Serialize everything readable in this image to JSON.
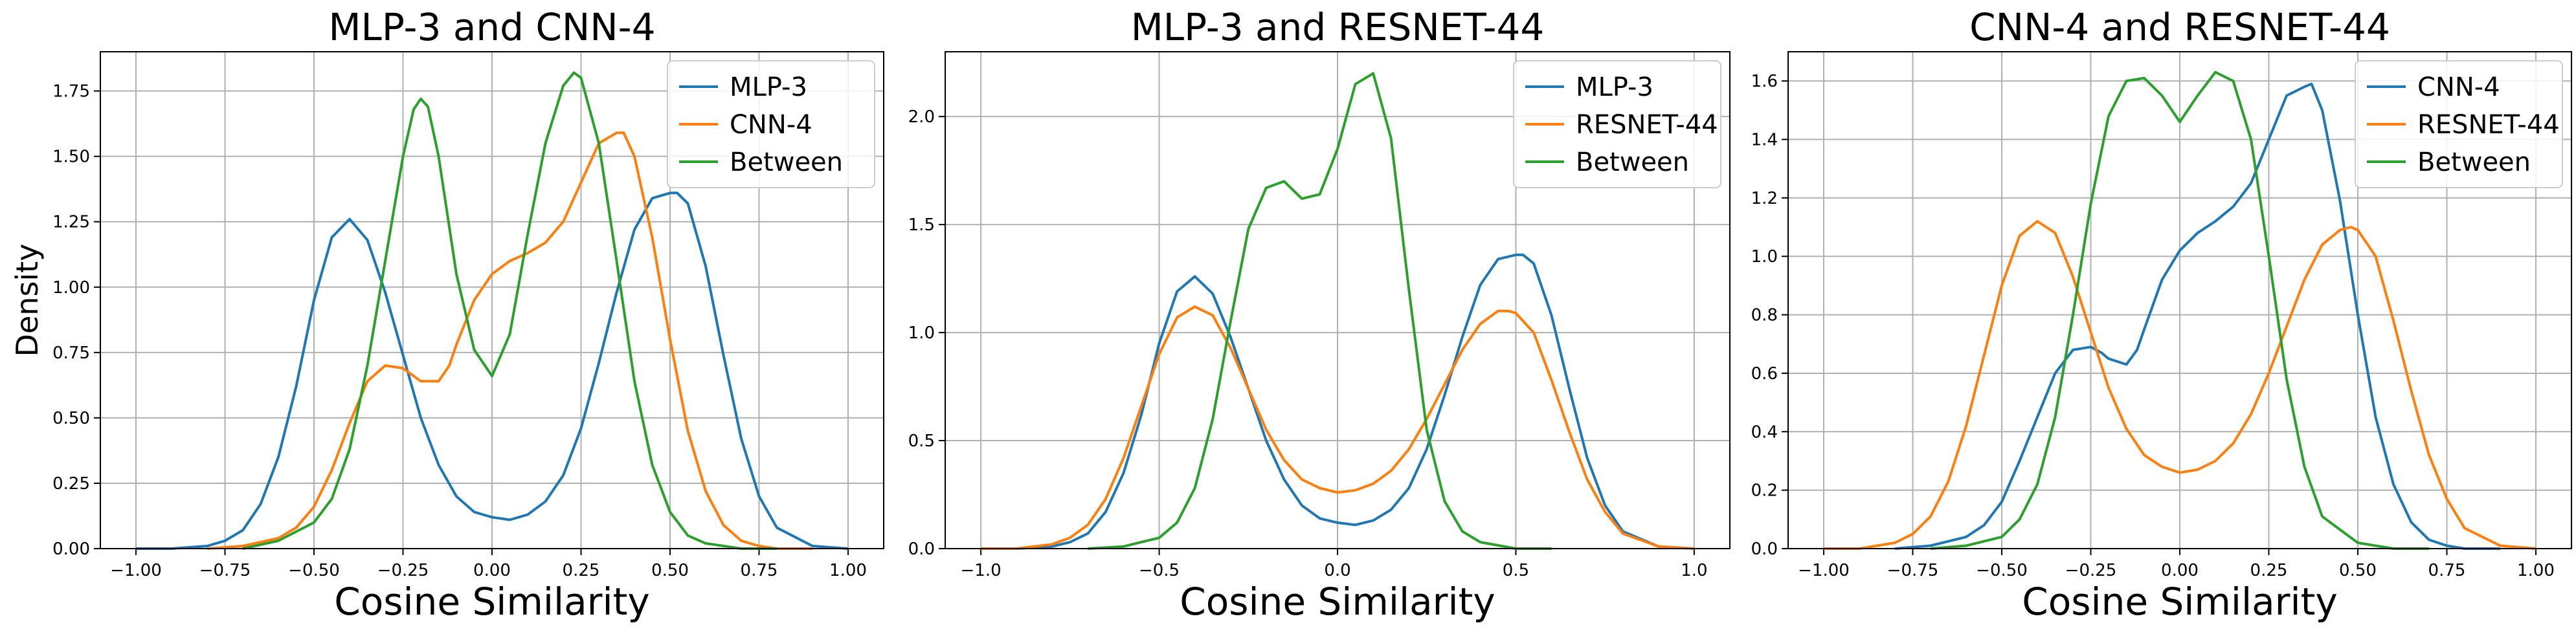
{
  "chart_data": [
    {
      "type": "line",
      "title": "MLP-3 and CNN-4",
      "xlabel": "Cosine Similarity",
      "ylabel": "Density",
      "xlim": [
        -1.1,
        1.1
      ],
      "ylim": [
        0,
        1.9
      ],
      "xticks": [
        -1.0,
        -0.75,
        -0.5,
        -0.25,
        0.0,
        0.25,
        0.5,
        0.75,
        1.0
      ],
      "xtick_labels": [
        "−1.00",
        "−0.75",
        "−0.50",
        "−0.25",
        "0.00",
        "0.25",
        "0.50",
        "0.75",
        "1.00"
      ],
      "yticks": [
        0,
        0.25,
        0.5,
        0.75,
        1.0,
        1.25,
        1.5,
        1.75
      ],
      "ytick_labels": [
        "0.00",
        "0.25",
        "0.50",
        "0.75",
        "1.00",
        "1.25",
        "1.50",
        "1.75"
      ],
      "grid": true,
      "legend": "upper right",
      "series": [
        {
          "name": "MLP-3",
          "color": "#1f77b4",
          "x": [
            -1.0,
            -0.9,
            -0.8,
            -0.75,
            -0.7,
            -0.65,
            -0.6,
            -0.55,
            -0.5,
            -0.45,
            -0.4,
            -0.35,
            -0.3,
            -0.25,
            -0.2,
            -0.15,
            -0.1,
            -0.05,
            0.0,
            0.05,
            0.1,
            0.15,
            0.2,
            0.25,
            0.3,
            0.35,
            0.4,
            0.45,
            0.5,
            0.52,
            0.55,
            0.6,
            0.65,
            0.7,
            0.75,
            0.8,
            0.9,
            1.0
          ],
          "y": [
            0.0,
            0.0,
            0.01,
            0.03,
            0.07,
            0.17,
            0.35,
            0.62,
            0.95,
            1.19,
            1.26,
            1.18,
            0.98,
            0.74,
            0.5,
            0.32,
            0.2,
            0.14,
            0.12,
            0.11,
            0.13,
            0.18,
            0.28,
            0.46,
            0.71,
            0.98,
            1.22,
            1.34,
            1.36,
            1.36,
            1.32,
            1.08,
            0.74,
            0.42,
            0.2,
            0.08,
            0.01,
            0.0
          ]
        },
        {
          "name": "CNN-4",
          "color": "#ff7f0e",
          "x": [
            -0.8,
            -0.7,
            -0.6,
            -0.55,
            -0.5,
            -0.45,
            -0.4,
            -0.35,
            -0.3,
            -0.25,
            -0.22,
            -0.2,
            -0.15,
            -0.12,
            -0.1,
            -0.05,
            0.0,
            0.05,
            0.1,
            0.15,
            0.2,
            0.25,
            0.3,
            0.35,
            0.37,
            0.4,
            0.45,
            0.5,
            0.55,
            0.6,
            0.65,
            0.7,
            0.75,
            0.8,
            0.9
          ],
          "y": [
            0.0,
            0.01,
            0.04,
            0.08,
            0.16,
            0.3,
            0.48,
            0.64,
            0.7,
            0.69,
            0.66,
            0.64,
            0.64,
            0.7,
            0.78,
            0.95,
            1.05,
            1.1,
            1.13,
            1.17,
            1.25,
            1.4,
            1.55,
            1.59,
            1.59,
            1.5,
            1.19,
            0.8,
            0.45,
            0.22,
            0.09,
            0.03,
            0.01,
            0.0,
            0.0
          ]
        },
        {
          "name": "Between",
          "color": "#2ca02c",
          "x": [
            -0.7,
            -0.6,
            -0.5,
            -0.45,
            -0.4,
            -0.35,
            -0.3,
            -0.25,
            -0.22,
            -0.2,
            -0.18,
            -0.15,
            -0.1,
            -0.05,
            0.0,
            0.05,
            0.1,
            0.15,
            0.2,
            0.23,
            0.25,
            0.3,
            0.35,
            0.4,
            0.45,
            0.5,
            0.55,
            0.6,
            0.7,
            0.8
          ],
          "y": [
            0.0,
            0.03,
            0.1,
            0.19,
            0.38,
            0.7,
            1.1,
            1.5,
            1.68,
            1.72,
            1.69,
            1.5,
            1.05,
            0.76,
            0.66,
            0.82,
            1.2,
            1.55,
            1.77,
            1.82,
            1.8,
            1.55,
            1.1,
            0.64,
            0.32,
            0.14,
            0.05,
            0.02,
            0.0,
            0.0
          ]
        }
      ]
    },
    {
      "type": "line",
      "title": "MLP-3 and RESNET-44",
      "xlabel": "Cosine Similarity",
      "ylabel": "",
      "xlim": [
        -1.1,
        1.1
      ],
      "ylim": [
        0,
        2.3
      ],
      "xticks": [
        -1.0,
        -0.5,
        0.0,
        0.5,
        1.0
      ],
      "xtick_labels": [
        "−1.0",
        "−0.5",
        "0.0",
        "0.5",
        "1.0"
      ],
      "yticks": [
        0,
        0.5,
        1.0,
        1.5,
        2.0
      ],
      "ytick_labels": [
        "0.0",
        "0.5",
        "1.0",
        "1.5",
        "2.0"
      ],
      "grid": true,
      "legend": "upper right",
      "series": [
        {
          "name": "MLP-3",
          "color": "#1f77b4",
          "x": [
            -1.0,
            -0.9,
            -0.8,
            -0.75,
            -0.7,
            -0.65,
            -0.6,
            -0.55,
            -0.5,
            -0.45,
            -0.4,
            -0.35,
            -0.3,
            -0.25,
            -0.2,
            -0.15,
            -0.1,
            -0.05,
            0.0,
            0.05,
            0.1,
            0.15,
            0.2,
            0.25,
            0.3,
            0.35,
            0.4,
            0.45,
            0.5,
            0.52,
            0.55,
            0.6,
            0.65,
            0.7,
            0.75,
            0.8,
            0.9,
            1.0
          ],
          "y": [
            0.0,
            0.0,
            0.01,
            0.03,
            0.07,
            0.17,
            0.35,
            0.62,
            0.95,
            1.19,
            1.26,
            1.18,
            0.98,
            0.74,
            0.5,
            0.32,
            0.2,
            0.14,
            0.12,
            0.11,
            0.13,
            0.18,
            0.28,
            0.46,
            0.71,
            0.98,
            1.22,
            1.34,
            1.36,
            1.36,
            1.32,
            1.08,
            0.74,
            0.42,
            0.2,
            0.08,
            0.01,
            0.0
          ]
        },
        {
          "name": "RESNET-44",
          "color": "#ff7f0e",
          "x": [
            -1.0,
            -0.9,
            -0.8,
            -0.75,
            -0.7,
            -0.65,
            -0.6,
            -0.55,
            -0.5,
            -0.45,
            -0.4,
            -0.35,
            -0.3,
            -0.25,
            -0.2,
            -0.15,
            -0.1,
            -0.05,
            0.0,
            0.05,
            0.1,
            0.15,
            0.2,
            0.25,
            0.3,
            0.35,
            0.4,
            0.45,
            0.48,
            0.5,
            0.55,
            0.6,
            0.65,
            0.7,
            0.75,
            0.8,
            0.9,
            1.0
          ],
          "y": [
            0.0,
            0.0,
            0.02,
            0.05,
            0.11,
            0.23,
            0.42,
            0.66,
            0.9,
            1.07,
            1.12,
            1.08,
            0.93,
            0.74,
            0.55,
            0.41,
            0.32,
            0.28,
            0.26,
            0.27,
            0.3,
            0.36,
            0.46,
            0.6,
            0.76,
            0.92,
            1.04,
            1.1,
            1.1,
            1.09,
            1.0,
            0.78,
            0.54,
            0.32,
            0.17,
            0.07,
            0.01,
            0.0
          ]
        },
        {
          "name": "Between",
          "color": "#2ca02c",
          "x": [
            -0.7,
            -0.6,
            -0.5,
            -0.45,
            -0.4,
            -0.35,
            -0.3,
            -0.25,
            -0.2,
            -0.15,
            -0.1,
            -0.05,
            0.0,
            0.05,
            0.1,
            0.15,
            0.2,
            0.25,
            0.3,
            0.35,
            0.4,
            0.5,
            0.6
          ],
          "y": [
            0.0,
            0.01,
            0.05,
            0.12,
            0.28,
            0.6,
            1.05,
            1.48,
            1.67,
            1.7,
            1.62,
            1.64,
            1.85,
            2.15,
            2.2,
            1.9,
            1.2,
            0.55,
            0.22,
            0.08,
            0.03,
            0.0,
            0.0
          ]
        }
      ]
    },
    {
      "type": "line",
      "title": "CNN-4 and RESNET-44",
      "xlabel": "Cosine Similarity",
      "ylabel": "",
      "xlim": [
        -1.1,
        1.1
      ],
      "ylim": [
        0,
        1.7
      ],
      "xticks": [
        -1.0,
        -0.75,
        -0.5,
        -0.25,
        0.0,
        0.25,
        0.5,
        0.75,
        1.0
      ],
      "xtick_labels": [
        "−1.00",
        "−0.75",
        "−0.50",
        "−0.25",
        "0.00",
        "0.25",
        "0.50",
        "0.75",
        "1.00"
      ],
      "yticks": [
        0,
        0.2,
        0.4,
        0.6,
        0.8,
        1.0,
        1.2,
        1.4,
        1.6
      ],
      "ytick_labels": [
        "0.0",
        "0.2",
        "0.4",
        "0.6",
        "0.8",
        "1.0",
        "1.2",
        "1.4",
        "1.6"
      ],
      "grid": true,
      "legend": "upper right",
      "series": [
        {
          "name": "CNN-4",
          "color": "#1f77b4",
          "x": [
            -0.8,
            -0.7,
            -0.6,
            -0.55,
            -0.5,
            -0.45,
            -0.4,
            -0.35,
            -0.3,
            -0.25,
            -0.22,
            -0.2,
            -0.15,
            -0.12,
            -0.1,
            -0.05,
            0.0,
            0.05,
            0.1,
            0.15,
            0.2,
            0.25,
            0.3,
            0.35,
            0.37,
            0.4,
            0.45,
            0.5,
            0.55,
            0.6,
            0.65,
            0.7,
            0.75,
            0.8,
            0.9
          ],
          "y": [
            0.0,
            0.01,
            0.04,
            0.08,
            0.16,
            0.3,
            0.45,
            0.6,
            0.68,
            0.69,
            0.67,
            0.65,
            0.63,
            0.68,
            0.75,
            0.92,
            1.02,
            1.08,
            1.12,
            1.17,
            1.25,
            1.4,
            1.55,
            1.58,
            1.59,
            1.5,
            1.19,
            0.8,
            0.45,
            0.22,
            0.09,
            0.03,
            0.01,
            0.0,
            0.0
          ]
        },
        {
          "name": "RESNET-44",
          "color": "#ff7f0e",
          "x": [
            -1.0,
            -0.9,
            -0.8,
            -0.75,
            -0.7,
            -0.65,
            -0.6,
            -0.55,
            -0.5,
            -0.45,
            -0.4,
            -0.35,
            -0.3,
            -0.25,
            -0.2,
            -0.15,
            -0.1,
            -0.05,
            0.0,
            0.05,
            0.1,
            0.15,
            0.2,
            0.25,
            0.3,
            0.35,
            0.4,
            0.45,
            0.48,
            0.5,
            0.55,
            0.6,
            0.65,
            0.7,
            0.75,
            0.8,
            0.9,
            1.0
          ],
          "y": [
            0.0,
            0.0,
            0.02,
            0.05,
            0.11,
            0.23,
            0.42,
            0.66,
            0.9,
            1.07,
            1.12,
            1.08,
            0.93,
            0.74,
            0.55,
            0.41,
            0.32,
            0.28,
            0.26,
            0.27,
            0.3,
            0.36,
            0.46,
            0.6,
            0.76,
            0.92,
            1.04,
            1.09,
            1.1,
            1.09,
            1.0,
            0.78,
            0.54,
            0.32,
            0.17,
            0.07,
            0.01,
            0.0
          ]
        },
        {
          "name": "Between",
          "color": "#2ca02c",
          "x": [
            -0.7,
            -0.6,
            -0.5,
            -0.45,
            -0.4,
            -0.35,
            -0.3,
            -0.25,
            -0.2,
            -0.15,
            -0.1,
            -0.05,
            0.0,
            0.05,
            0.1,
            0.15,
            0.2,
            0.25,
            0.3,
            0.35,
            0.4,
            0.5,
            0.6,
            0.7
          ],
          "y": [
            0.0,
            0.01,
            0.04,
            0.1,
            0.22,
            0.45,
            0.8,
            1.18,
            1.48,
            1.6,
            1.61,
            1.55,
            1.46,
            1.55,
            1.63,
            1.6,
            1.4,
            1.0,
            0.58,
            0.28,
            0.11,
            0.02,
            0.0,
            0.0
          ]
        }
      ]
    }
  ]
}
